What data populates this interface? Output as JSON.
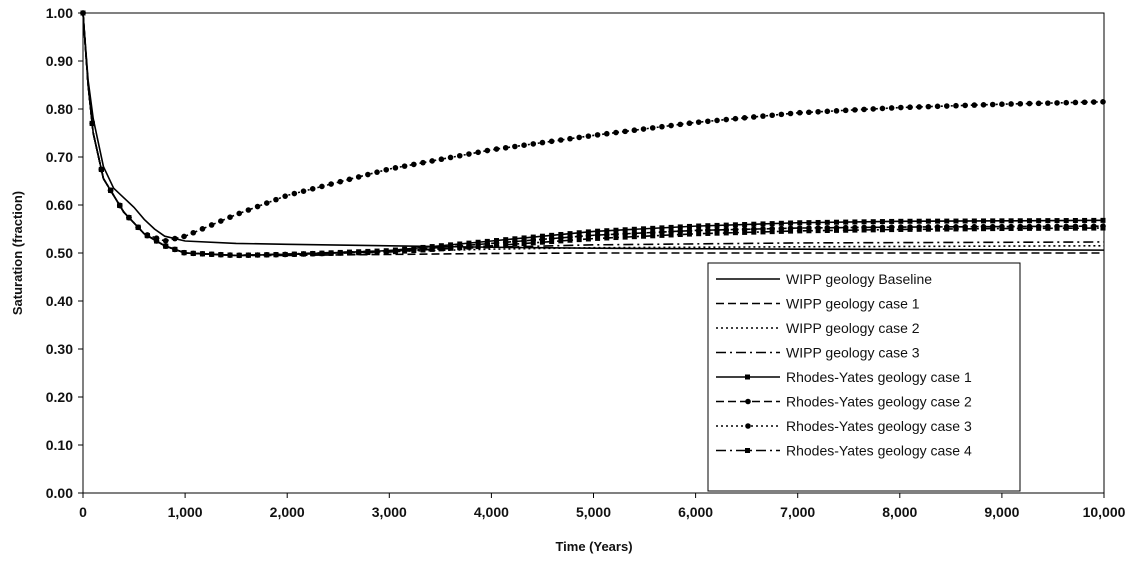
{
  "chart_data": {
    "type": "line",
    "title": "",
    "xlabel": "Time (Years)",
    "ylabel": "Saturation (fraction)",
    "xlim": [
      0,
      10000
    ],
    "ylim": [
      0,
      1.0
    ],
    "x_ticks": [
      0,
      1000,
      2000,
      3000,
      4000,
      5000,
      6000,
      7000,
      8000,
      9000,
      10000
    ],
    "x_tick_labels": [
      "0",
      "1,000",
      "2,000",
      "3,000",
      "4,000",
      "5,000",
      "6,000",
      "7,000",
      "8,000",
      "9,000",
      "10,000"
    ],
    "y_ticks": [
      0,
      0.1,
      0.2,
      0.3,
      0.4,
      0.5,
      0.6,
      0.7,
      0.8,
      0.9,
      1.0
    ],
    "y_tick_labels": [
      "0.00",
      "0.10",
      "0.20",
      "0.30",
      "0.40",
      "0.50",
      "0.60",
      "0.70",
      "0.80",
      "0.90",
      "1.00"
    ],
    "grid": false,
    "legend_position": "bottom-right",
    "series": [
      {
        "name": "WIPP geology Baseline",
        "style": "solid",
        "marker": "none",
        "points": [
          [
            0,
            1.0
          ],
          [
            50,
            0.86
          ],
          [
            100,
            0.78
          ],
          [
            200,
            0.68
          ],
          [
            300,
            0.635
          ],
          [
            400,
            0.615
          ],
          [
            500,
            0.595
          ],
          [
            600,
            0.57
          ],
          [
            700,
            0.55
          ],
          [
            800,
            0.535
          ],
          [
            1000,
            0.525
          ],
          [
            1500,
            0.52
          ],
          [
            2000,
            0.518
          ],
          [
            3000,
            0.515
          ],
          [
            4000,
            0.512
          ],
          [
            5000,
            0.51
          ],
          [
            7000,
            0.508
          ],
          [
            10000,
            0.506
          ]
        ]
      },
      {
        "name": "WIPP geology case 1",
        "style": "dashed",
        "marker": "none",
        "points": [
          [
            0,
            1.0
          ],
          [
            50,
            0.85
          ],
          [
            100,
            0.75
          ],
          [
            200,
            0.655
          ],
          [
            400,
            0.585
          ],
          [
            600,
            0.54
          ],
          [
            800,
            0.515
          ],
          [
            1000,
            0.5
          ],
          [
            1500,
            0.495
          ],
          [
            2000,
            0.495
          ],
          [
            3000,
            0.497
          ],
          [
            4000,
            0.499
          ],
          [
            5000,
            0.5
          ],
          [
            7000,
            0.5
          ],
          [
            10000,
            0.5
          ]
        ]
      },
      {
        "name": "WIPP geology case 2",
        "style": "dotted",
        "marker": "none",
        "points": [
          [
            0,
            1.0
          ],
          [
            50,
            0.85
          ],
          [
            100,
            0.75
          ],
          [
            200,
            0.655
          ],
          [
            400,
            0.585
          ],
          [
            600,
            0.54
          ],
          [
            800,
            0.515
          ],
          [
            1000,
            0.5
          ],
          [
            1500,
            0.495
          ],
          [
            2000,
            0.497
          ],
          [
            3000,
            0.503
          ],
          [
            4000,
            0.508
          ],
          [
            5000,
            0.511
          ],
          [
            7000,
            0.513
          ],
          [
            10000,
            0.515
          ]
        ]
      },
      {
        "name": "WIPP geology case 3",
        "style": "dashdot",
        "marker": "none",
        "points": [
          [
            0,
            1.0
          ],
          [
            50,
            0.85
          ],
          [
            100,
            0.75
          ],
          [
            200,
            0.655
          ],
          [
            400,
            0.585
          ],
          [
            600,
            0.54
          ],
          [
            800,
            0.515
          ],
          [
            1000,
            0.5
          ],
          [
            1500,
            0.495
          ],
          [
            2000,
            0.498
          ],
          [
            3000,
            0.505
          ],
          [
            4000,
            0.512
          ],
          [
            5000,
            0.517
          ],
          [
            7000,
            0.521
          ],
          [
            10000,
            0.523
          ]
        ]
      },
      {
        "name": "Rhodes-Yates geology case 1",
        "style": "solid",
        "marker": "square",
        "points": [
          [
            0,
            1.0
          ],
          [
            50,
            0.85
          ],
          [
            100,
            0.75
          ],
          [
            200,
            0.655
          ],
          [
            400,
            0.585
          ],
          [
            600,
            0.54
          ],
          [
            800,
            0.515
          ],
          [
            1000,
            0.5
          ],
          [
            1500,
            0.495
          ],
          [
            2000,
            0.497
          ],
          [
            3000,
            0.505
          ],
          [
            4000,
            0.525
          ],
          [
            5000,
            0.545
          ],
          [
            6000,
            0.556
          ],
          [
            7000,
            0.563
          ],
          [
            8000,
            0.566
          ],
          [
            9000,
            0.567
          ],
          [
            10000,
            0.568
          ]
        ]
      },
      {
        "name": "Rhodes-Yates geology case 2",
        "style": "dashed",
        "marker": "circle",
        "points": [
          [
            0,
            1.0
          ],
          [
            50,
            0.85
          ],
          [
            100,
            0.75
          ],
          [
            200,
            0.655
          ],
          [
            400,
            0.585
          ],
          [
            600,
            0.54
          ],
          [
            800,
            0.515
          ],
          [
            1000,
            0.5
          ],
          [
            1500,
            0.495
          ],
          [
            2000,
            0.497
          ],
          [
            3000,
            0.503
          ],
          [
            4000,
            0.52
          ],
          [
            5000,
            0.537
          ],
          [
            6000,
            0.547
          ],
          [
            7000,
            0.552
          ],
          [
            8000,
            0.554
          ],
          [
            9000,
            0.555
          ],
          [
            10000,
            0.556
          ]
        ]
      },
      {
        "name": "Rhodes-Yates geology case 3",
        "style": "dotted",
        "marker": "circle",
        "points": [
          [
            0,
            1.0
          ],
          [
            50,
            0.85
          ],
          [
            100,
            0.75
          ],
          [
            200,
            0.655
          ],
          [
            400,
            0.585
          ],
          [
            600,
            0.54
          ],
          [
            800,
            0.525
          ],
          [
            1000,
            0.535
          ],
          [
            1500,
            0.58
          ],
          [
            2000,
            0.62
          ],
          [
            3000,
            0.675
          ],
          [
            4000,
            0.715
          ],
          [
            5000,
            0.745
          ],
          [
            6000,
            0.772
          ],
          [
            7000,
            0.792
          ],
          [
            8000,
            0.803
          ],
          [
            9000,
            0.81
          ],
          [
            10000,
            0.815
          ]
        ]
      },
      {
        "name": "Rhodes-Yates geology case 4",
        "style": "dashdot",
        "marker": "square",
        "points": [
          [
            0,
            1.0
          ],
          [
            50,
            0.85
          ],
          [
            100,
            0.75
          ],
          [
            200,
            0.655
          ],
          [
            400,
            0.585
          ],
          [
            600,
            0.54
          ],
          [
            800,
            0.515
          ],
          [
            1000,
            0.5
          ],
          [
            1500,
            0.495
          ],
          [
            2000,
            0.497
          ],
          [
            3000,
            0.502
          ],
          [
            4000,
            0.515
          ],
          [
            5000,
            0.53
          ],
          [
            6000,
            0.54
          ],
          [
            7000,
            0.546
          ],
          [
            8000,
            0.549
          ],
          [
            9000,
            0.551
          ],
          [
            10000,
            0.552
          ]
        ]
      }
    ]
  }
}
